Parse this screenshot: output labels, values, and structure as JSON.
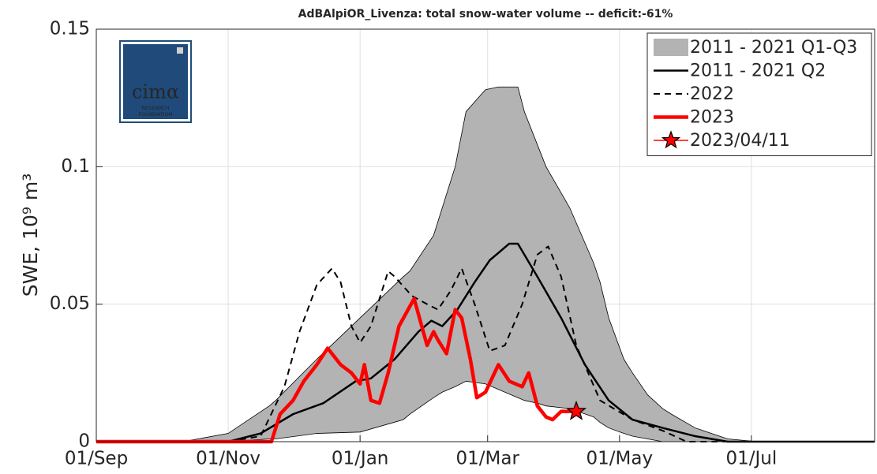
{
  "chart_data": {
    "type": "line",
    "title": "AdBAlpiOR_Livenza: total snow-water volume -- deficit:-61%",
    "y_label": "SWE, 10⁹ m³",
    "logo": {
      "name": "cimα",
      "line1": "RESEARCH",
      "line2": "FOUNDATION"
    },
    "xlim": [
      0,
      360
    ],
    "xticks": [
      {
        "value": 0,
        "label": "01/Sep"
      },
      {
        "value": 61,
        "label": "01/Nov"
      },
      {
        "value": 122,
        "label": "01/Jan"
      },
      {
        "value": 181,
        "label": "01/Mar"
      },
      {
        "value": 242,
        "label": "01/May"
      },
      {
        "value": 303,
        "label": "01/Jul"
      }
    ],
    "ylim": [
      0,
      0.15
    ],
    "yticks": [
      0,
      0.05,
      0.1,
      0.15
    ],
    "grid": true,
    "legend": "top-right",
    "band": {
      "name": "2011 - 2021 Q1-Q3",
      "color": "#b3b3b3",
      "x": [
        0,
        40,
        61,
        80,
        83,
        102,
        122,
        142,
        145,
        156,
        160,
        166,
        171,
        180,
        186,
        189,
        195,
        198,
        204,
        208,
        219,
        230,
        233,
        237,
        244,
        248,
        255,
        262,
        266,
        277,
        292,
        306,
        360
      ],
      "high": [
        0,
        0,
        0.003,
        0.013,
        0.015,
        0.03,
        0.045,
        0.06,
        0.062,
        0.075,
        0.085,
        0.1,
        0.12,
        0.128,
        0.129,
        0.129,
        0.129,
        0.12,
        0.108,
        0.1,
        0.085,
        0.065,
        0.058,
        0.045,
        0.03,
        0.025,
        0.017,
        0.012,
        0.01,
        0.005,
        0.001,
        0,
        0
      ],
      "low": [
        0,
        0,
        0,
        0.001,
        0.001,
        0.003,
        0.0035,
        0.008,
        0.01,
        0.016,
        0.018,
        0.02,
        0.022,
        0.021,
        0.019,
        0.018,
        0.016,
        0.015,
        0.014,
        0.013,
        0.012,
        0.009,
        0.007,
        0.005,
        0.003,
        0.002,
        0.001,
        0,
        0,
        0,
        0,
        0,
        0
      ]
    },
    "series": [
      {
        "name": "2011 - 2021 Q2",
        "color": "#000000",
        "style": "solid",
        "x": [
          0,
          61,
          76,
          91,
          105,
          120,
          127,
          138,
          149,
          155,
          160,
          167,
          175,
          182,
          191,
          195,
          204,
          215,
          226,
          237,
          248,
          262,
          277,
          292,
          360
        ],
        "values": [
          0,
          0,
          0.003,
          0.01,
          0.014,
          0.022,
          0.023,
          0.03,
          0.04,
          0.044,
          0.042,
          0.048,
          0.058,
          0.066,
          0.072,
          0.072,
          0.06,
          0.045,
          0.028,
          0.015,
          0.008,
          0.005,
          0.002,
          0,
          0
        ]
      },
      {
        "name": "2022",
        "color": "#000000",
        "style": "dashed",
        "x": [
          0,
          61,
          76,
          87,
          94,
          102,
          109,
          113,
          118,
          122,
          127,
          135,
          138,
          146,
          153,
          158,
          164,
          169,
          175,
          182,
          189,
          197,
          204,
          209,
          215,
          222,
          233,
          248,
          262,
          273,
          360
        ],
        "values": [
          0,
          0,
          0.002,
          0.02,
          0.04,
          0.057,
          0.063,
          0.058,
          0.042,
          0.036,
          0.042,
          0.062,
          0.06,
          0.053,
          0.05,
          0.048,
          0.055,
          0.063,
          0.05,
          0.033,
          0.035,
          0.05,
          0.068,
          0.071,
          0.06,
          0.035,
          0.015,
          0.008,
          0.004,
          0,
          0
        ]
      },
      {
        "name": "2023",
        "color": "#ff0000",
        "style": "thick",
        "x": [
          0,
          81,
          85,
          91,
          96,
          102,
          107,
          113,
          118,
          122,
          124,
          127,
          131,
          135,
          140,
          147,
          153,
          156,
          158,
          162,
          166,
          169,
          173,
          176,
          180,
          186,
          191,
          197,
          200,
          204,
          208,
          211,
          215,
          222
        ],
        "values": [
          0,
          0,
          0.01,
          0.015,
          0.022,
          0.028,
          0.034,
          0.028,
          0.025,
          0.021,
          0.028,
          0.015,
          0.014,
          0.025,
          0.042,
          0.052,
          0.035,
          0.04,
          0.037,
          0.032,
          0.048,
          0.045,
          0.03,
          0.016,
          0.018,
          0.028,
          0.022,
          0.02,
          0.025,
          0.013,
          0.009,
          0.008,
          0.011,
          0.011
        ]
      }
    ],
    "point": {
      "name": "2023/04/11",
      "color": "#ff0000",
      "x": 222,
      "value": 0.011
    }
  }
}
